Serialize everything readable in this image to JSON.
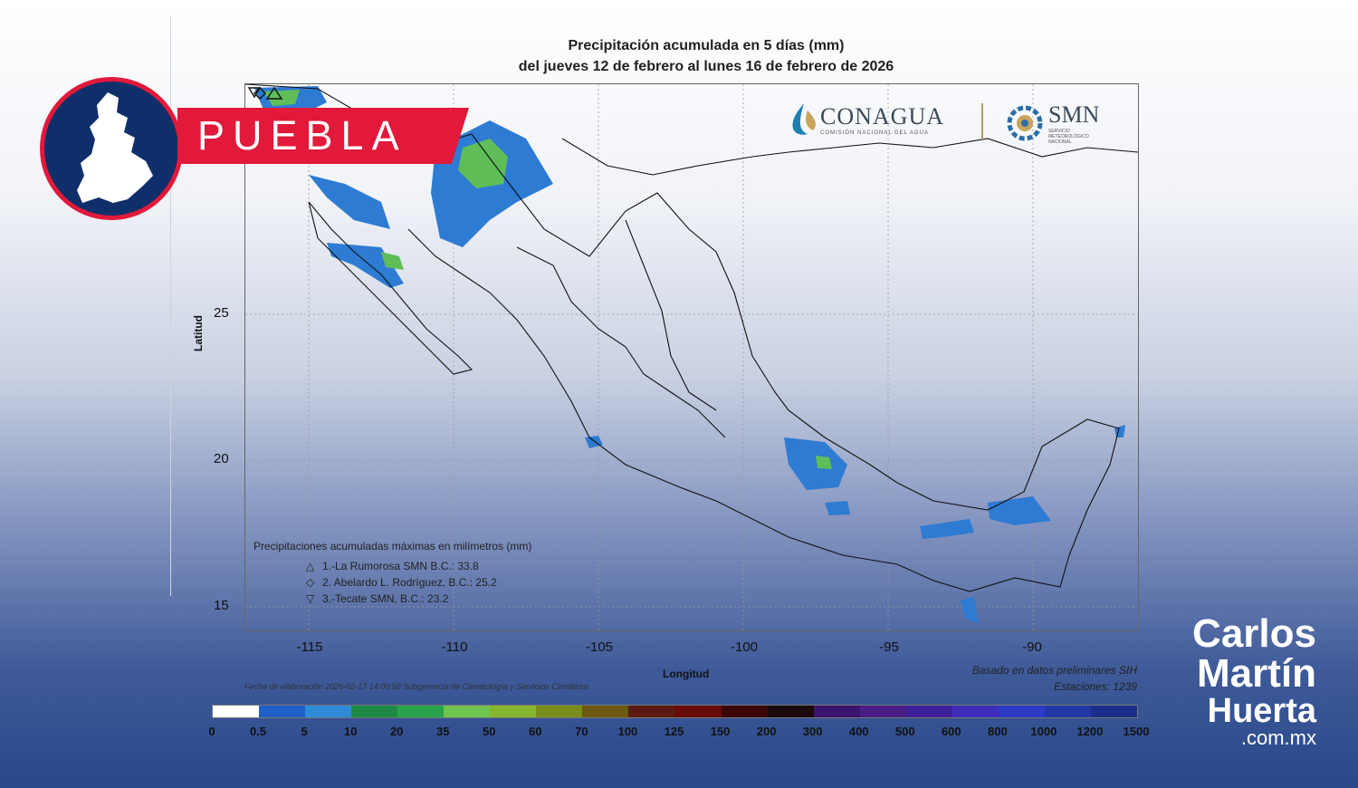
{
  "title_line1": "Precipitación acumulada en 5 días (mm)",
  "title_line2": "del jueves 12 de febrero al lunes 16 de febrero de 2026",
  "badge": {
    "label": "PUEBLA"
  },
  "logos": {
    "conagua": "CONAGUA",
    "conagua_sub": "COMISIÓN NACIONAL DEL AGUA",
    "smn": "SMN",
    "smn_sub": [
      "SERVICIO",
      "METEOROLÓGICO",
      "NACIONAL"
    ]
  },
  "axes": {
    "ylabel": "Latitud",
    "xlabel": "Longitud",
    "yticks": [
      "25",
      "20",
      "15"
    ],
    "xticks": [
      "-115",
      "-110",
      "-105",
      "-100",
      "-95",
      "-90"
    ]
  },
  "legend": {
    "heading": "Precipitaciones acumuladas máximas en milímetros (mm)",
    "items": [
      {
        "symbol": "△",
        "text": "1.-La Rumorosa SMN B.C.: 33.8"
      },
      {
        "symbol": "◇",
        "text": "2. Abelardo L. Rodríguez, B.C.: 25.2"
      },
      {
        "symbol": "▽",
        "text": "3.-Tecate SMN, B.C.: 23.2"
      }
    ]
  },
  "info": {
    "based_on": "Basado en datos preliminares SIH",
    "stations": "Estaciones:  1239",
    "credits": "Fecha de elaboración 2026-02-17 14:00:50 Subgerencia de Climatología y Servicios Climáticos"
  },
  "colorbar": {
    "labels": [
      "0",
      "0.5",
      "5",
      "10",
      "20",
      "35",
      "50",
      "60",
      "70",
      "100",
      "125",
      "150",
      "200",
      "300",
      "400",
      "500",
      "600",
      "800",
      "1000",
      "1200",
      "1500"
    ],
    "colors": [
      "#ffffff",
      "#1f5fc8",
      "#2f8ad8",
      "#1e8a46",
      "#2aa24a",
      "#6fc34e",
      "#86b62f",
      "#7a8d1c",
      "#6b5a10",
      "#5a1c10",
      "#6b0b08",
      "#3a0606",
      "#1a0a0a",
      "#3b1470",
      "#4a1c86",
      "#3e1f9a",
      "#3f2dba",
      "#2c3ac7",
      "#2338a6",
      "#1b2e8a"
    ]
  },
  "brand": {
    "line1": "Carlos",
    "line2": "Martín",
    "line3": "Huerta",
    "line4": ".com.mx"
  }
}
